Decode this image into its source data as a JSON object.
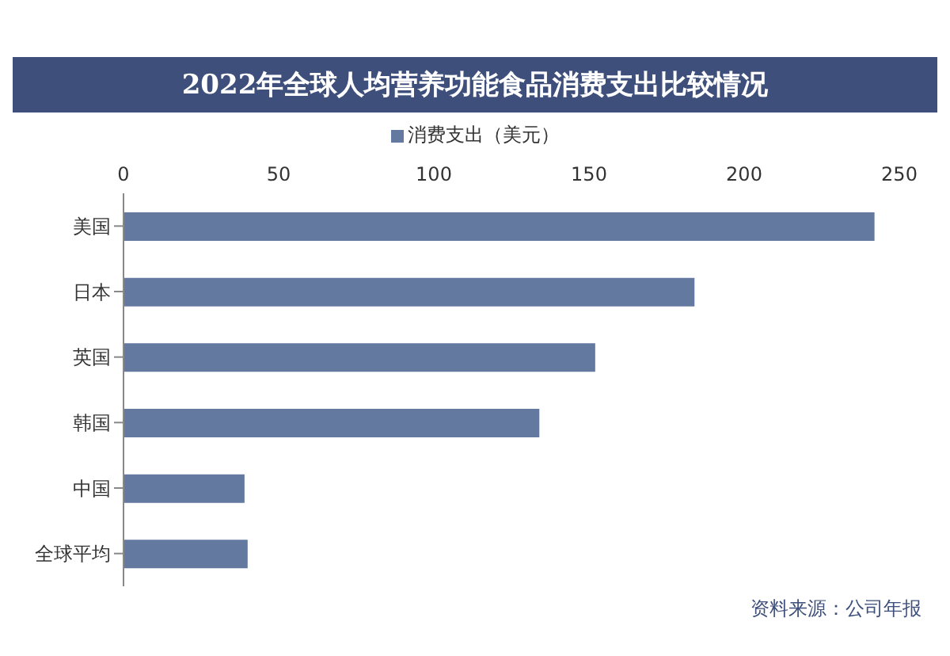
{
  "chart_data": {
    "type": "bar",
    "orientation": "horizontal",
    "title": "2022年全球人均营养功能食品消费支出比较情况",
    "categories": [
      "美国",
      "日本",
      "英国",
      "韩国",
      "中国",
      "全球平均"
    ],
    "series": [
      {
        "name": "消费支出（美元）",
        "color": "#6479a0",
        "values": [
          242,
          184,
          152,
          134,
          39,
          40
        ]
      }
    ],
    "xlim": [
      0,
      250
    ],
    "xticks": [
      0,
      50,
      100,
      150,
      200,
      250
    ],
    "grid": false,
    "legend": "top",
    "annotations": [
      "资料来源：公司年报"
    ]
  }
}
